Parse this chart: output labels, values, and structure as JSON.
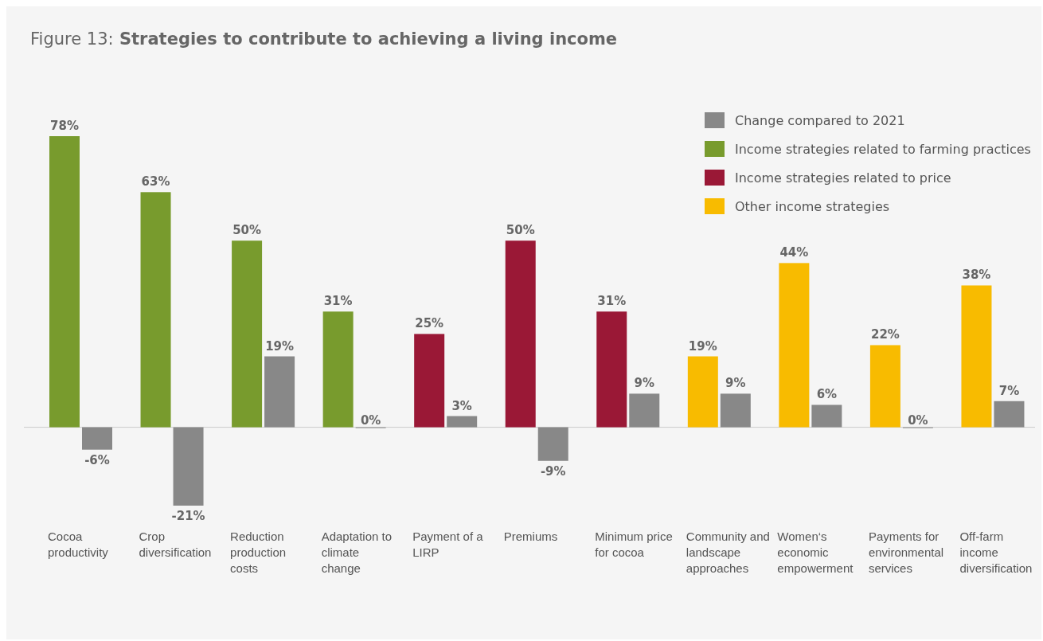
{
  "chart_data": {
    "type": "bar",
    "title": "Figure 13: Strategies to contribute to achieving a living income",
    "categories": [
      "Cocoa productivity",
      "Crop diversification",
      "Reduction production costs",
      "Adaptation to climate change",
      "Payment of a LIRP",
      "Premiums",
      "Minimum price for cocoa",
      "Community and landscape approaches",
      "Women‘s economic empowerment",
      "Payments for environmental services",
      "Off-farm income diversification"
    ],
    "series": [
      {
        "name": "Change compared to 2021",
        "color": "#888888",
        "values": [
          -6,
          -21,
          19,
          0,
          3,
          -9,
          9,
          9,
          6,
          0,
          7
        ],
        "value_labels": [
          "-6%",
          "-21%",
          "19%",
          "0%",
          "3%",
          "-9%",
          "9%",
          "9%",
          "6%",
          "0%",
          "7%"
        ]
      },
      {
        "name": "Income strategies related to farming practices",
        "color": "#789b2d",
        "values": [
          78,
          63,
          50,
          31,
          null,
          null,
          null,
          null,
          null,
          null,
          null
        ],
        "value_labels": [
          "78%",
          "63%",
          "50%",
          "31%",
          null,
          null,
          null,
          null,
          null,
          null,
          null
        ]
      },
      {
        "name": "Income strategies related to price",
        "color": "#9a1836",
        "values": [
          null,
          null,
          null,
          null,
          25,
          50,
          31,
          null,
          null,
          null,
          null
        ],
        "value_labels": [
          null,
          null,
          null,
          null,
          "25%",
          "50%",
          "31%",
          null,
          null,
          null,
          null
        ]
      },
      {
        "name": "Other income strategies",
        "color": "#f8bb00",
        "values": [
          null,
          null,
          null,
          null,
          null,
          null,
          null,
          19,
          44,
          22,
          38
        ],
        "value_labels": [
          null,
          null,
          null,
          null,
          null,
          null,
          null,
          "19%",
          "44%",
          "22%",
          "38%"
        ]
      }
    ],
    "legend": "top right"
  }
}
